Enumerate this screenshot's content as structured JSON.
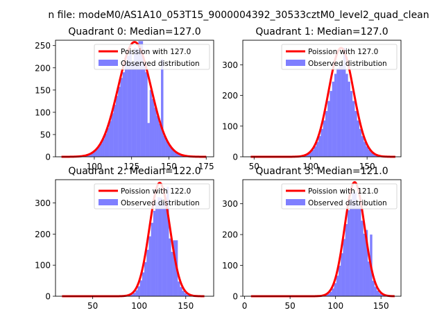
{
  "figure": {
    "suptitle": "n file: modeM0/AS1A10_053T15_9000004392_30533cztM0_level2_quad_clean"
  },
  "colors": {
    "hist": "#7f7fff",
    "poisson": "#ff0000"
  },
  "chart_data": [
    {
      "type": "bar",
      "title": "Quadrant 0: Median=127.0",
      "xlim": [
        74,
        180
      ],
      "ylim": [
        0,
        262
      ],
      "xticks": [
        100,
        125,
        150,
        175
      ],
      "yticks": [
        0,
        50,
        100,
        150,
        200,
        250
      ],
      "hist": {
        "range": [
          78,
          175
        ],
        "nbins": 64,
        "peak": 245,
        "mu": 127,
        "sigma": 11,
        "overrides": [
          [
            130.4,
            260
          ],
          [
            131.9,
            260
          ],
          [
            136.5,
            76
          ],
          [
            145.6,
            220
          ],
          [
            120.3,
            190
          ],
          [
            125.0,
            212
          ]
        ]
      },
      "poisson": {
        "mean": 127.0,
        "peak": 258,
        "sigma": 11
      },
      "legend": {
        "line": "Poission with 127.0",
        "bar": "Observed distribution",
        "loc": "upper right"
      }
    },
    {
      "type": "bar",
      "title": "Quadrant 1: Median=127.0",
      "xlim": [
        40,
        180
      ],
      "ylim": [
        0,
        380
      ],
      "xticks": [
        50,
        100,
        150
      ],
      "yticks": [
        0,
        100,
        200,
        300
      ],
      "hist": {
        "range": [
          47,
          175
        ],
        "nbins": 64,
        "peak": 300,
        "mu": 127,
        "sigma": 11,
        "overrides": [
          [
            123,
            370
          ],
          [
            130,
            355
          ],
          [
            135,
            235
          ],
          [
            117,
            235
          ],
          [
            121,
            240
          ],
          [
            127,
            355
          ]
        ]
      },
      "poisson": {
        "mean": 127.0,
        "peak": 355,
        "sigma": 11
      },
      "legend": {
        "line": "Poission with 127.0",
        "bar": "Observed distribution",
        "loc": "upper right"
      }
    },
    {
      "type": "bar",
      "title": "Quadrant 2: Median=122.0",
      "xlim": [
        10,
        180
      ],
      "ylim": [
        0,
        375
      ],
      "xticks": [
        50,
        100,
        150
      ],
      "yticks": [
        0,
        100,
        200,
        300
      ],
      "hist": {
        "range": [
          17,
          170
        ],
        "nbins": 64,
        "peak": 320,
        "mu": 122,
        "sigma": 10.5,
        "overrides": [
          [
            127,
            318
          ],
          [
            131,
            352
          ],
          [
            137,
            180
          ],
          [
            141,
            180
          ]
        ]
      },
      "poisson": {
        "mean": 122.0,
        "peak": 365,
        "sigma": 11
      },
      "legend": {
        "line": "Poission with 122.0",
        "bar": "Observed distribution",
        "loc": "upper right"
      }
    },
    {
      "type": "bar",
      "title": "Quadrant 3: Median=121.0",
      "xlim": [
        -2,
        172
      ],
      "ylim": [
        0,
        378
      ],
      "xticks": [
        0,
        50,
        100,
        150
      ],
      "yticks": [
        0,
        100,
        200,
        300
      ],
      "hist": {
        "range": [
          7,
          165
        ],
        "nbins": 64,
        "peak": 340,
        "mu": 121,
        "sigma": 10.5,
        "overrides": [
          [
            125,
            300
          ],
          [
            128,
            245
          ],
          [
            135,
            215
          ],
          [
            138,
            200
          ]
        ]
      },
      "poisson": {
        "mean": 121.0,
        "peak": 370,
        "sigma": 11
      },
      "legend": {
        "line": "Poission with 121.0",
        "bar": "Observed distribution",
        "loc": "upper right"
      }
    }
  ]
}
